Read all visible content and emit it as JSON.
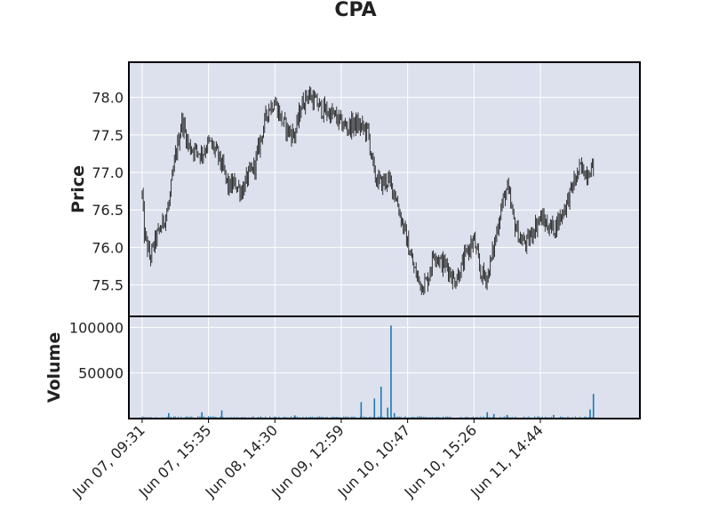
{
  "chart_data": {
    "type": "candlestick",
    "title": "CPA",
    "price_panel": {
      "ylabel": "Price",
      "ylim": [
        75.08,
        78.47
      ],
      "yticks": [
        75.5,
        76.0,
        76.5,
        77.0,
        77.5,
        78.0
      ],
      "ytick_labels": [
        "75.5",
        "76.0",
        "76.5",
        "77.0",
        "77.5",
        "78.0"
      ],
      "trend": [
        [
          0,
          76.7
        ],
        [
          0.3,
          76.2
        ],
        [
          1.2,
          75.85
        ],
        [
          2,
          76.1
        ],
        [
          3,
          76.3
        ],
        [
          4,
          76.55
        ],
        [
          5,
          77.2
        ],
        [
          6,
          77.7
        ],
        [
          7,
          77.35
        ],
        [
          8,
          77.3
        ],
        [
          9,
          77.25
        ],
        [
          10,
          77.4
        ],
        [
          11,
          77.3
        ],
        [
          12,
          77.1
        ],
        [
          13,
          76.8
        ],
        [
          14,
          76.85
        ],
        [
          15,
          76.75
        ],
        [
          16,
          76.95
        ],
        [
          17,
          77.1
        ],
        [
          18,
          77.5
        ],
        [
          19,
          77.85
        ],
        [
          20,
          77.95
        ],
        [
          21,
          77.7
        ],
        [
          22,
          77.55
        ],
        [
          23,
          77.5
        ],
        [
          24,
          77.9
        ],
        [
          25,
          78.05
        ],
        [
          26,
          77.95
        ],
        [
          27,
          77.85
        ],
        [
          28,
          77.8
        ],
        [
          29,
          77.75
        ],
        [
          30,
          77.65
        ],
        [
          31,
          77.6
        ],
        [
          32,
          77.65
        ],
        [
          33,
          77.6
        ],
        [
          34,
          77.55
        ],
        [
          35,
          76.95
        ],
        [
          36,
          76.85
        ],
        [
          37,
          76.9
        ],
        [
          38,
          76.75
        ],
        [
          39,
          76.4
        ],
        [
          40,
          76.05
        ],
        [
          41,
          75.7
        ],
        [
          42,
          75.5
        ],
        [
          43,
          75.55
        ],
        [
          44,
          75.95
        ],
        [
          45,
          75.8
        ],
        [
          46,
          75.75
        ],
        [
          47,
          75.55
        ],
        [
          48,
          75.7
        ],
        [
          49,
          75.95
        ],
        [
          50,
          76.1
        ],
        [
          51,
          75.65
        ],
        [
          52,
          75.6
        ],
        [
          53,
          76.0
        ],
        [
          54,
          76.5
        ],
        [
          55,
          76.8
        ],
        [
          56,
          76.35
        ],
        [
          57,
          76.1
        ],
        [
          58,
          76.05
        ],
        [
          59,
          76.25
        ],
        [
          60,
          76.4
        ],
        [
          61,
          76.3
        ],
        [
          62,
          76.25
        ],
        [
          63,
          76.4
        ],
        [
          64,
          76.6
        ],
        [
          65,
          76.85
        ],
        [
          66,
          77.05
        ],
        [
          67,
          77.0
        ],
        [
          68,
          77.1
        ]
      ]
    },
    "volume_panel": {
      "ylabel": "Volume",
      "ylim": [
        0,
        112000
      ],
      "yticks": [
        50000,
        100000
      ],
      "ytick_labels": [
        "50000",
        "100000"
      ],
      "spikes": [
        [
          4,
          6000
        ],
        [
          9,
          7000
        ],
        [
          12,
          9000
        ],
        [
          23,
          3500
        ],
        [
          33,
          18000
        ],
        [
          35,
          22000
        ],
        [
          36,
          35000
        ],
        [
          37,
          12000
        ],
        [
          37.5,
          102000
        ],
        [
          38,
          6000
        ],
        [
          52,
          7000
        ],
        [
          53,
          5000
        ],
        [
          55,
          4000
        ],
        [
          62,
          4000
        ],
        [
          68,
          27000
        ],
        [
          67.5,
          10000
        ]
      ]
    },
    "x": {
      "range": [
        -2,
        75
      ],
      "tick_positions": [
        0,
        10,
        20,
        30,
        40,
        50,
        60
      ],
      "tick_labels": [
        "Jun 07, 09:31",
        "Jun 07, 15:35",
        "Jun 08, 14:30",
        "Jun 09, 12:59",
        "Jun 10, 10:47",
        "Jun 10, 15:26",
        "Jun 11, 14:44"
      ]
    },
    "grid": true,
    "colors": {
      "panel_bg": "#dce1ed",
      "grid": "#ffffff",
      "candle": "#222222",
      "volume": "#1f77b4",
      "frame": "#000000"
    }
  }
}
